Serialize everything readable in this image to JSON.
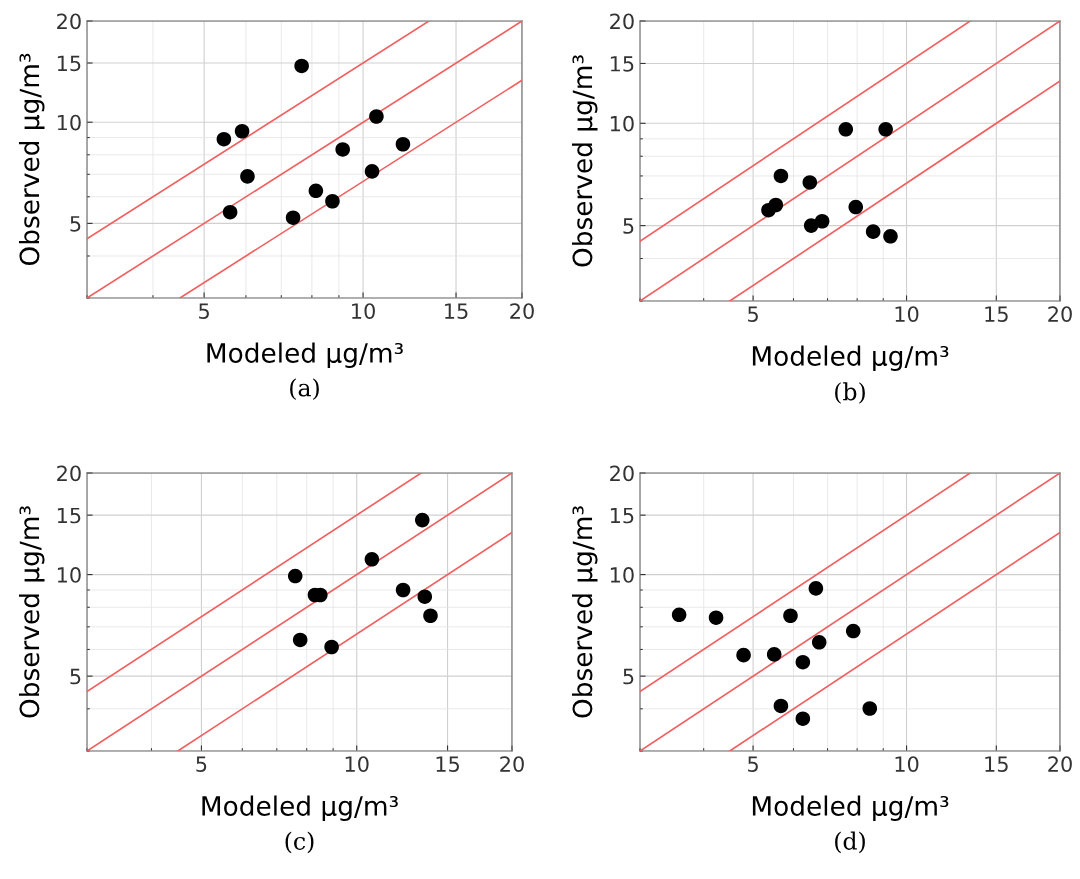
{
  "chart_data": [
    {
      "type": "scatter",
      "xlabel": "Modeled μg/m³",
      "ylabel": "Observed μg/m³",
      "annotations": [
        "(a)"
      ],
      "log": "xy",
      "grid": true,
      "xlim": [
        3,
        20
      ],
      "ylim": [
        3,
        20
      ],
      "xticks": [
        5,
        10,
        15,
        20
      ],
      "yticks": [
        5,
        10,
        15,
        20
      ],
      "series": [
        {
          "type": "scatter",
          "marker": "circle",
          "color": "#000000",
          "x": [
            7.65,
            5.45,
            5.9,
            6.04,
            5.6,
            7.37,
            8.14,
            8.75,
            9.15,
            10.6,
            10.4,
            11.9
          ],
          "values": [
            14.7,
            8.9,
            9.4,
            6.9,
            5.4,
            5.2,
            6.25,
            5.82,
            8.3,
            10.4,
            7.14,
            8.6
          ]
        },
        {
          "type": "line",
          "color": "#f06060",
          "x": [
            3,
            13.33
          ],
          "values": [
            4.5,
            20
          ]
        },
        {
          "type": "line",
          "color": "#f06060",
          "x": [
            3,
            20
          ],
          "values": [
            3,
            20
          ]
        },
        {
          "type": "line",
          "color": "#f06060",
          "x": [
            4.5,
            20
          ],
          "values": [
            3,
            13.33
          ]
        }
      ]
    },
    {
      "type": "scatter",
      "xlabel": "Modeled μg/m³",
      "ylabel": "Observed μg/m³",
      "annotations": [
        "(b)"
      ],
      "log": "xy",
      "grid": true,
      "xlim": [
        3,
        20
      ],
      "ylim": [
        3,
        20
      ],
      "xticks": [
        5,
        10,
        15,
        20
      ],
      "yticks": [
        5,
        10,
        15,
        20
      ],
      "series": [
        {
          "type": "scatter",
          "marker": "circle",
          "color": "#000000",
          "x": [
            7.6,
            9.1,
            5.67,
            6.46,
            5.36,
            5.54,
            7.95,
            6.5,
            6.83,
            8.6,
            9.3
          ],
          "values": [
            9.6,
            9.6,
            7.0,
            6.7,
            5.55,
            5.75,
            5.67,
            5.0,
            5.15,
            4.8,
            4.65
          ]
        },
        {
          "type": "line",
          "color": "#f06060",
          "x": [
            3,
            13.33
          ],
          "values": [
            4.5,
            20
          ]
        },
        {
          "type": "line",
          "color": "#f06060",
          "x": [
            3,
            20
          ],
          "values": [
            3,
            20
          ]
        },
        {
          "type": "line",
          "color": "#f06060",
          "x": [
            4.5,
            20
          ],
          "values": [
            3,
            13.33
          ]
        }
      ]
    },
    {
      "type": "scatter",
      "xlabel": "Modeled μg/m³",
      "ylabel": "Observed μg/m³",
      "annotations": [
        "(c)"
      ],
      "log": "xy",
      "grid": true,
      "xlim": [
        3,
        20
      ],
      "ylim": [
        3,
        20
      ],
      "xticks": [
        5,
        10,
        15,
        20
      ],
      "yticks": [
        5,
        10,
        15,
        20
      ],
      "series": [
        {
          "type": "scatter",
          "marker": "circle",
          "color": "#000000",
          "x": [
            13.4,
            10.7,
            7.6,
            8.3,
            8.5,
            12.3,
            13.55,
            13.9,
            7.77,
            8.94
          ],
          "values": [
            14.5,
            11.1,
            9.9,
            8.7,
            8.7,
            9.0,
            8.6,
            7.55,
            6.4,
            6.1
          ]
        },
        {
          "type": "line",
          "color": "#f06060",
          "x": [
            3,
            13.33
          ],
          "values": [
            4.5,
            20
          ]
        },
        {
          "type": "line",
          "color": "#f06060",
          "x": [
            3,
            20
          ],
          "values": [
            3,
            20
          ]
        },
        {
          "type": "line",
          "color": "#f06060",
          "x": [
            4.5,
            20
          ],
          "values": [
            3,
            13.33
          ]
        }
      ]
    },
    {
      "type": "scatter",
      "xlabel": "Modeled μg/m³",
      "ylabel": "Observed μg/m³",
      "annotations": [
        "(d)"
      ],
      "log": "xy",
      "grid": true,
      "xlim": [
        3,
        20
      ],
      "ylim": [
        3,
        20
      ],
      "xticks": [
        5,
        10,
        15,
        20
      ],
      "yticks": [
        5,
        10,
        15,
        20
      ],
      "series": [
        {
          "type": "scatter",
          "marker": "circle",
          "color": "#000000",
          "x": [
            3.58,
            4.23,
            4.79,
            5.5,
            5.92,
            6.64,
            6.26,
            6.74,
            7.86,
            5.67,
            6.26,
            8.47
          ],
          "values": [
            7.6,
            7.45,
            5.77,
            5.8,
            7.55,
            9.1,
            5.5,
            6.3,
            6.8,
            4.08,
            3.74,
            4.01
          ]
        },
        {
          "type": "line",
          "color": "#f06060",
          "x": [
            3,
            13.33
          ],
          "values": [
            4.5,
            20
          ]
        },
        {
          "type": "line",
          "color": "#f06060",
          "x": [
            3,
            20
          ],
          "values": [
            3,
            20
          ]
        },
        {
          "type": "line",
          "color": "#f06060",
          "x": [
            4.5,
            20
          ],
          "values": [
            3,
            13.33
          ]
        }
      ]
    }
  ]
}
